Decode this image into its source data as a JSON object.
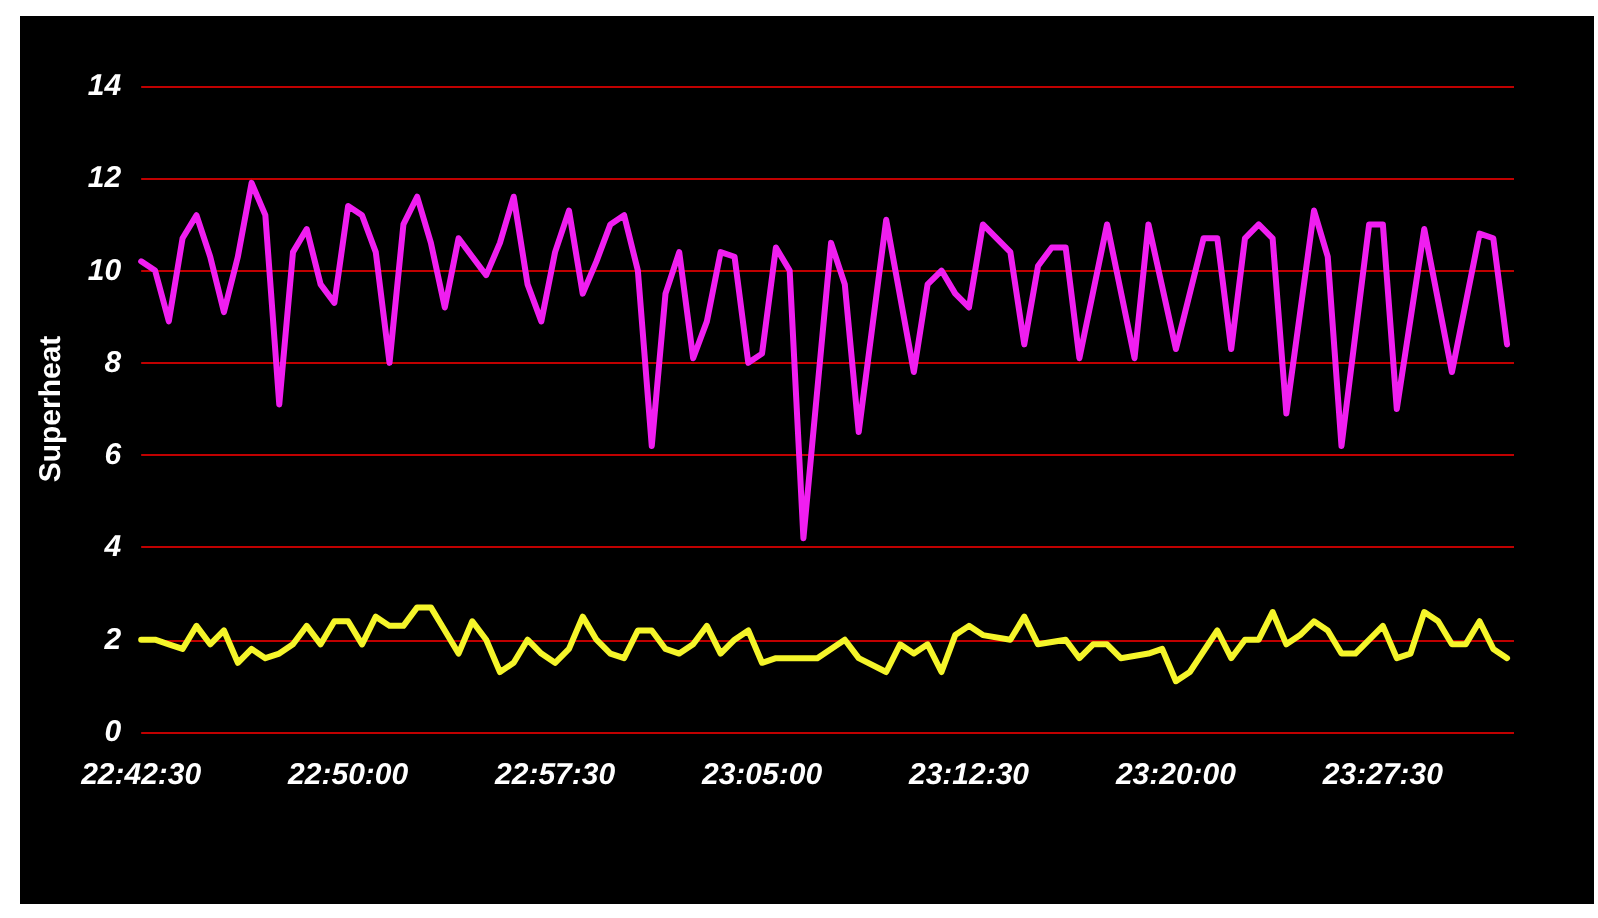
{
  "chart_data": {
    "type": "line",
    "ylabel": "Superheat",
    "xlim": [
      22.7083,
      23.5375
    ],
    "xticks": [
      {
        "value": 22.7083,
        "label": "22:42:30"
      },
      {
        "value": 22.8333,
        "label": "22:50:00"
      },
      {
        "value": 22.9583,
        "label": "22:57:30"
      },
      {
        "value": 23.0833,
        "label": "23:05:00"
      },
      {
        "value": 23.2083,
        "label": "23:12:30"
      },
      {
        "value": 23.3333,
        "label": "23:20:00"
      },
      {
        "value": 23.4583,
        "label": "23:27:30"
      }
    ],
    "ylim": [
      0,
      14
    ],
    "yticks": [
      0,
      2,
      4,
      6,
      8,
      10,
      12,
      14
    ],
    "grid": "y",
    "marker": "none",
    "line_style": "solid",
    "series": [
      {
        "color": "#f01ef0",
        "x": [
          22.7083,
          22.7167,
          22.725,
          22.7333,
          22.7417,
          22.75,
          22.7583,
          22.7667,
          22.775,
          22.7833,
          22.7917,
          22.8,
          22.8083,
          22.8167,
          22.825,
          22.8333,
          22.8417,
          22.85,
          22.8583,
          22.8667,
          22.875,
          22.8833,
          22.8917,
          22.9,
          22.9083,
          22.9167,
          22.925,
          22.9333,
          22.9417,
          22.95,
          22.9583,
          22.9667,
          22.975,
          22.9833,
          22.9917,
          23.0,
          23.0083,
          23.0167,
          23.025,
          23.0333,
          23.0417,
          23.05,
          23.0583,
          23.0667,
          23.075,
          23.0833,
          23.0917,
          23.1,
          23.1083,
          23.125,
          23.1333,
          23.1417,
          23.1583,
          23.175,
          23.1833,
          23.1917,
          23.2,
          23.2083,
          23.2167,
          23.2333,
          23.2417,
          23.25,
          23.2583,
          23.2667,
          23.275,
          23.2917,
          23.3083,
          23.3167,
          23.3333,
          23.35,
          23.3583,
          23.3667,
          23.375,
          23.3833,
          23.3917,
          23.4,
          23.4167,
          23.425,
          23.4333,
          23.45,
          23.4583,
          23.4667,
          23.4833,
          23.5,
          23.5167,
          23.525,
          23.5333
        ],
        "values": [
          10.2,
          10.0,
          8.9,
          10.7,
          11.2,
          10.3,
          9.1,
          10.3,
          11.9,
          11.2,
          7.1,
          10.4,
          10.9,
          9.7,
          9.3,
          11.4,
          11.2,
          10.4,
          8.0,
          11.0,
          11.6,
          10.6,
          9.2,
          10.7,
          10.3,
          9.9,
          10.6,
          11.6,
          9.7,
          8.9,
          10.4,
          11.3,
          9.5,
          10.2,
          11.0,
          11.2,
          10.0,
          6.2,
          9.5,
          10.4,
          8.1,
          8.9,
          10.4,
          10.3,
          8.0,
          8.2,
          10.5,
          10.0,
          4.2,
          10.6,
          9.7,
          6.5,
          11.1,
          7.8,
          9.7,
          10.0,
          9.5,
          9.2,
          11.0,
          10.4,
          8.4,
          10.1,
          10.5,
          10.5,
          8.1,
          11.0,
          8.1,
          11.0,
          8.3,
          10.7,
          10.7,
          8.3,
          10.7,
          11.0,
          10.7,
          6.9,
          11.3,
          10.3,
          6.2,
          11.0,
          11.0,
          7.0,
          10.9,
          7.8,
          10.8,
          10.7,
          8.4
        ]
      },
      {
        "color": "#f5f52a",
        "x": [
          22.7083,
          22.7167,
          22.725,
          22.7333,
          22.7417,
          22.75,
          22.7583,
          22.7667,
          22.775,
          22.7833,
          22.7917,
          22.8,
          22.8083,
          22.8167,
          22.825,
          22.8333,
          22.8417,
          22.85,
          22.8583,
          22.8667,
          22.875,
          22.8833,
          22.8917,
          22.9,
          22.9083,
          22.9167,
          22.925,
          22.9333,
          22.9417,
          22.95,
          22.9583,
          22.9667,
          22.975,
          22.9833,
          22.9917,
          23.0,
          23.0083,
          23.0167,
          23.025,
          23.0333,
          23.0417,
          23.05,
          23.0583,
          23.0667,
          23.075,
          23.0833,
          23.0917,
          23.1,
          23.1083,
          23.1167,
          23.1333,
          23.1417,
          23.1583,
          23.1667,
          23.175,
          23.1833,
          23.1917,
          23.2,
          23.2083,
          23.2167,
          23.2333,
          23.2417,
          23.25,
          23.2667,
          23.275,
          23.2833,
          23.2917,
          23.3,
          23.3167,
          23.325,
          23.3333,
          23.3417,
          23.3583,
          23.3667,
          23.375,
          23.3833,
          23.3917,
          23.4,
          23.4083,
          23.4167,
          23.425,
          23.4333,
          23.4417,
          23.4583,
          23.4667,
          23.475,
          23.4833,
          23.4917,
          23.5,
          23.5083,
          23.5167,
          23.525,
          23.5333
        ],
        "values": [
          2.0,
          2.0,
          1.9,
          1.8,
          2.3,
          1.9,
          2.2,
          1.5,
          1.8,
          1.6,
          1.7,
          1.9,
          2.3,
          1.9,
          2.4,
          2.4,
          1.9,
          2.5,
          2.3,
          2.3,
          2.7,
          2.7,
          2.2,
          1.7,
          2.4,
          2.0,
          1.3,
          1.5,
          2.0,
          1.7,
          1.5,
          1.8,
          2.5,
          2.0,
          1.7,
          1.6,
          2.2,
          2.2,
          1.8,
          1.7,
          1.9,
          2.3,
          1.7,
          2.0,
          2.2,
          1.5,
          1.6,
          1.6,
          1.6,
          1.6,
          2.0,
          1.6,
          1.3,
          1.9,
          1.7,
          1.9,
          1.3,
          2.1,
          2.3,
          2.1,
          2.0,
          2.5,
          1.9,
          2.0,
          1.6,
          1.9,
          1.9,
          1.6,
          1.7,
          1.8,
          1.1,
          1.3,
          2.2,
          1.6,
          2.0,
          2.0,
          2.6,
          1.9,
          2.1,
          2.4,
          2.2,
          1.7,
          1.7,
          2.3,
          1.6,
          1.7,
          2.6,
          2.4,
          1.9,
          1.9,
          2.4,
          1.8,
          1.6
        ]
      }
    ]
  }
}
